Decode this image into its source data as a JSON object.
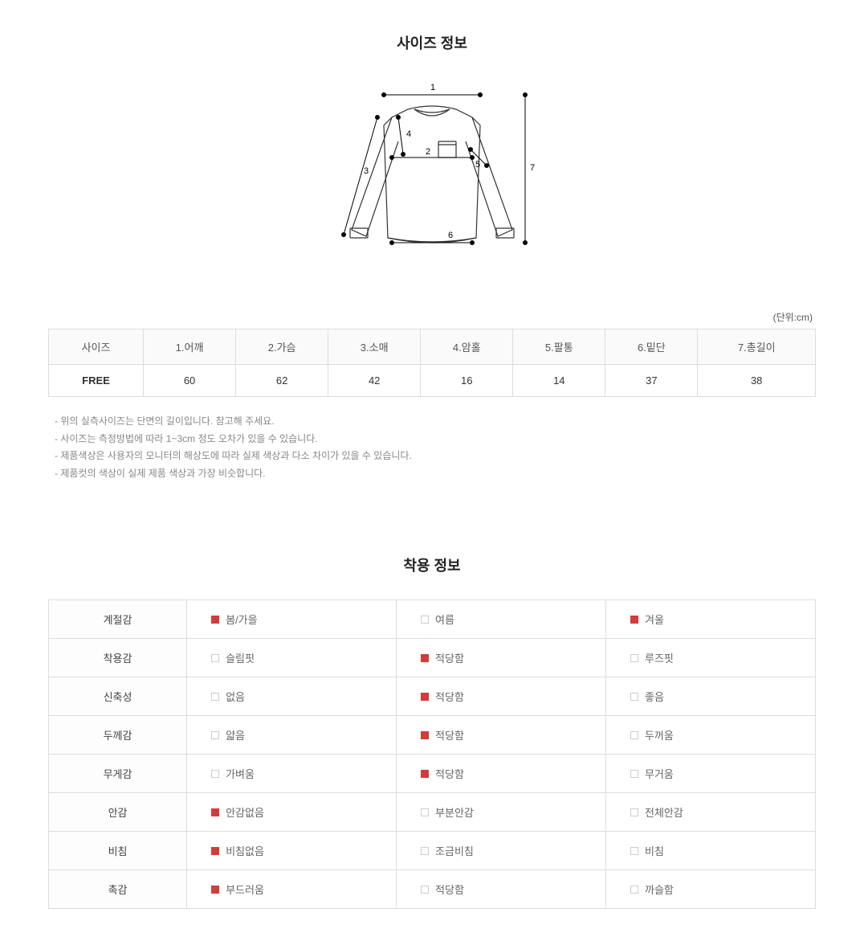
{
  "section1_title": "사이즈 정보",
  "unit_label": "(단위:cm)",
  "size_table": {
    "headers": [
      "사이즈",
      "1.어깨",
      "2.가슴",
      "3.소매",
      "4.암홀",
      "5.팔통",
      "6.밑단",
      "7.총길이"
    ],
    "row_label": "FREE",
    "values": [
      "60",
      "62",
      "42",
      "16",
      "14",
      "37",
      "38"
    ]
  },
  "diagram_labels": {
    "n1": "1",
    "n2": "2",
    "n3": "3",
    "n4": "4",
    "n5": "5",
    "n6": "6",
    "n7": "7"
  },
  "notes": [
    "- 위의 실측사이즈는 단면의 길이입니다. 참고해 주세요.",
    "- 사이즈는 측정방법에 따라 1~3cm 정도 오차가 있을 수 있습니다.",
    "- 제품색상은 사용자의 모니터의 해상도에 따라 실제 색상과 다소 차이가 있을 수 있습니다.",
    "- 제품컷의 색상이 실제 제품 색상과 가장 비슷합니다."
  ],
  "section2_title": "착용 정보",
  "wear_rows": [
    {
      "label": "계절감",
      "opts": [
        {
          "t": "봄/가을",
          "c": true
        },
        {
          "t": "여름",
          "c": false
        },
        {
          "t": "겨울",
          "c": true
        }
      ]
    },
    {
      "label": "착용감",
      "opts": [
        {
          "t": "슬림핏",
          "c": false
        },
        {
          "t": "적당함",
          "c": true
        },
        {
          "t": "루즈핏",
          "c": false
        }
      ]
    },
    {
      "label": "신축성",
      "opts": [
        {
          "t": "없음",
          "c": false
        },
        {
          "t": "적당함",
          "c": true
        },
        {
          "t": "좋음",
          "c": false
        }
      ]
    },
    {
      "label": "두께감",
      "opts": [
        {
          "t": "얇음",
          "c": false
        },
        {
          "t": "적당함",
          "c": true
        },
        {
          "t": "두꺼움",
          "c": false
        }
      ]
    },
    {
      "label": "무게감",
      "opts": [
        {
          "t": "가벼움",
          "c": false
        },
        {
          "t": "적당함",
          "c": true
        },
        {
          "t": "무거움",
          "c": false
        }
      ]
    },
    {
      "label": "안감",
      "opts": [
        {
          "t": "안감없음",
          "c": true
        },
        {
          "t": "부분안감",
          "c": false
        },
        {
          "t": "전체안감",
          "c": false
        }
      ]
    },
    {
      "label": "비침",
      "opts": [
        {
          "t": "비침없음",
          "c": true
        },
        {
          "t": "조금비침",
          "c": false
        },
        {
          "t": "비침",
          "c": false
        }
      ]
    },
    {
      "label": "촉감",
      "opts": [
        {
          "t": "부드러움",
          "c": true
        },
        {
          "t": "적당함",
          "c": false
        },
        {
          "t": "까슬함",
          "c": false
        }
      ]
    }
  ],
  "colors": {
    "accent": "#d43b3b",
    "border": "#dddddd",
    "text": "#333333",
    "muted": "#888888"
  }
}
